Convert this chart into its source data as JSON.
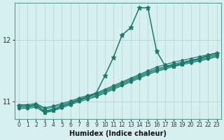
{
  "xlabel": "Humidex (Indice chaleur)",
  "ylabel": "",
  "xlim": [
    -0.5,
    23.5
  ],
  "ylim": [
    10.72,
    12.6
  ],
  "yticks": [
    11,
    12
  ],
  "xticks": [
    0,
    1,
    2,
    3,
    4,
    5,
    6,
    7,
    8,
    9,
    10,
    11,
    12,
    13,
    14,
    15,
    16,
    17,
    18,
    19,
    20,
    21,
    22,
    23
  ],
  "bg_color": "#d6efef",
  "grid_color": "#b8d8d8",
  "line_color": "#1a7a6e",
  "lines": [
    {
      "x": [
        0,
        1,
        2,
        3,
        4,
        5,
        6,
        7,
        8,
        9,
        10,
        11,
        12,
        13,
        14,
        15,
        16,
        17,
        18,
        19,
        20,
        21,
        22,
        23
      ],
      "y": [
        10.95,
        10.95,
        10.97,
        10.9,
        10.93,
        10.97,
        11.01,
        11.06,
        11.1,
        11.14,
        11.2,
        11.26,
        11.32,
        11.38,
        11.44,
        11.5,
        11.56,
        11.6,
        11.64,
        11.67,
        11.7,
        11.73,
        11.76,
        11.79
      ],
      "marker": "D",
      "markersize": 2.0,
      "linewidth": 0.9
    },
    {
      "x": [
        0,
        1,
        2,
        3,
        4,
        5,
        6,
        7,
        8,
        9,
        10,
        11,
        12,
        13,
        14,
        15,
        16,
        17,
        18,
        19,
        20,
        21,
        22,
        23
      ],
      "y": [
        10.93,
        10.93,
        10.95,
        10.88,
        10.91,
        10.95,
        10.99,
        11.04,
        11.08,
        11.12,
        11.18,
        11.24,
        11.3,
        11.36,
        11.42,
        11.48,
        11.53,
        11.57,
        11.61,
        11.64,
        11.67,
        11.7,
        11.73,
        11.77
      ],
      "marker": "D",
      "markersize": 2.0,
      "linewidth": 0.9
    },
    {
      "x": [
        0,
        1,
        2,
        3,
        4,
        5,
        6,
        7,
        8,
        9,
        10,
        11,
        12,
        13,
        14,
        15,
        16,
        17,
        18,
        19,
        20,
        21,
        22,
        23
      ],
      "y": [
        10.91,
        10.91,
        10.93,
        10.85,
        10.88,
        10.93,
        10.97,
        11.02,
        11.06,
        11.1,
        11.16,
        11.22,
        11.28,
        11.34,
        11.4,
        11.46,
        11.51,
        11.55,
        11.59,
        11.62,
        11.65,
        11.68,
        11.71,
        11.75
      ],
      "marker": "D",
      "markersize": 2.0,
      "linewidth": 0.9
    },
    {
      "x": [
        0,
        1,
        2,
        3,
        4,
        5,
        6,
        7,
        8,
        9,
        10,
        11,
        12,
        13,
        14,
        15,
        16,
        17,
        18,
        19,
        20,
        21,
        22,
        23
      ],
      "y": [
        10.89,
        10.89,
        10.91,
        10.82,
        10.85,
        10.9,
        10.95,
        11.0,
        11.04,
        11.08,
        11.14,
        11.2,
        11.26,
        11.32,
        11.38,
        11.44,
        11.49,
        11.53,
        11.57,
        11.6,
        11.63,
        11.66,
        11.69,
        11.73
      ],
      "marker": "D",
      "markersize": 2.0,
      "linewidth": 0.9
    },
    {
      "x": [
        0,
        1,
        2,
        3,
        4,
        5,
        6,
        7,
        8,
        9,
        10,
        11,
        12,
        13,
        14,
        15,
        16,
        17,
        18,
        19,
        20,
        21,
        22,
        23
      ],
      "y": [
        10.93,
        10.93,
        10.95,
        10.83,
        10.87,
        10.92,
        10.97,
        11.03,
        11.08,
        11.14,
        11.42,
        11.72,
        12.08,
        12.2,
        12.52,
        12.52,
        11.82,
        11.58,
        11.58,
        11.62,
        11.66,
        11.7,
        11.75,
        11.79
      ],
      "marker": "*",
      "markersize": 4.5,
      "linewidth": 1.1
    }
  ]
}
